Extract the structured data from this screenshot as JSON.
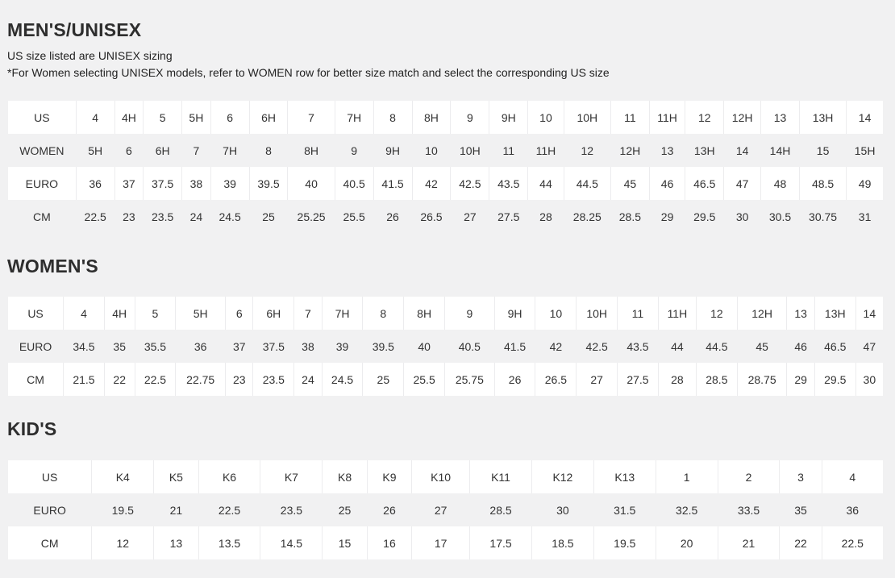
{
  "mens": {
    "title": "MEN'S/UNISEX",
    "note1": "US size listed are UNISEX sizing",
    "note2": "*For Women selecting UNISEX models, refer to WOMEN row for better size match and select the corresponding US size",
    "rows": [
      [
        "US",
        "4",
        "4H",
        "5",
        "5H",
        "6",
        "6H",
        "7",
        "7H",
        "8",
        "8H",
        "9",
        "9H",
        "10",
        "10H",
        "11",
        "11H",
        "12",
        "12H",
        "13",
        "13H",
        "14"
      ],
      [
        "WOMEN",
        "5H",
        "6",
        "6H",
        "7",
        "7H",
        "8",
        "8H",
        "9",
        "9H",
        "10",
        "10H",
        "11",
        "11H",
        "12",
        "12H",
        "13",
        "13H",
        "14",
        "14H",
        "15",
        "15H"
      ],
      [
        "EURO",
        "36",
        "37",
        "37.5",
        "38",
        "39",
        "39.5",
        "40",
        "40.5",
        "41.5",
        "42",
        "42.5",
        "43.5",
        "44",
        "44.5",
        "45",
        "46",
        "46.5",
        "47",
        "48",
        "48.5",
        "49"
      ],
      [
        "CM",
        "22.5",
        "23",
        "23.5",
        "24",
        "24.5",
        "25",
        "25.25",
        "25.5",
        "26",
        "26.5",
        "27",
        "27.5",
        "28",
        "28.25",
        "28.5",
        "29",
        "29.5",
        "30",
        "30.5",
        "30.75",
        "31"
      ]
    ]
  },
  "womens": {
    "title": "WOMEN'S",
    "rows": [
      [
        "US",
        "4",
        "4H",
        "5",
        "5H",
        "6",
        "6H",
        "7",
        "7H",
        "8",
        "8H",
        "9",
        "9H",
        "10",
        "10H",
        "11",
        "11H",
        "12",
        "12H",
        "13",
        "13H",
        "14"
      ],
      [
        "EURO",
        "34.5",
        "35",
        "35.5",
        "36",
        "37",
        "37.5",
        "38",
        "39",
        "39.5",
        "40",
        "40.5",
        "41.5",
        "42",
        "42.5",
        "43.5",
        "44",
        "44.5",
        "45",
        "46",
        "46.5",
        "47"
      ],
      [
        "CM",
        "21.5",
        "22",
        "22.5",
        "22.75",
        "23",
        "23.5",
        "24",
        "24.5",
        "25",
        "25.5",
        "25.75",
        "26",
        "26.5",
        "27",
        "27.5",
        "28",
        "28.5",
        "28.75",
        "29",
        "29.5",
        "30"
      ]
    ]
  },
  "kids": {
    "title": "KID'S",
    "rows": [
      [
        "US",
        "K4",
        "K5",
        "K6",
        "K7",
        "K8",
        "K9",
        "K10",
        "K11",
        "K12",
        "K13",
        "1",
        "2",
        "3",
        "4"
      ],
      [
        "EURO",
        "19.5",
        "21",
        "22.5",
        "23.5",
        "25",
        "26",
        "27",
        "28.5",
        "30",
        "31.5",
        "32.5",
        "33.5",
        "35",
        "36"
      ],
      [
        "CM",
        "12",
        "13",
        "13.5",
        "14.5",
        "15",
        "16",
        "17",
        "17.5",
        "18.5",
        "19.5",
        "20",
        "21",
        "22",
        "22.5"
      ]
    ]
  }
}
